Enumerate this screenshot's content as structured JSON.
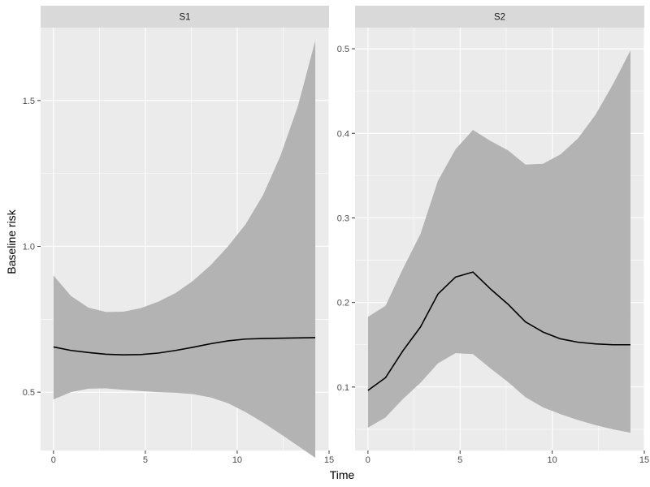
{
  "chart_data": {
    "type": "line",
    "xlabel": "Time",
    "ylabel": "Baseline risk",
    "colors": {
      "panel_bg": "#ebebeb",
      "strip_bg": "#d9d9d9",
      "grid": "#ffffff",
      "ribbon": "#b3b3b3",
      "line": "#000000"
    },
    "panels": [
      {
        "strip": "S1",
        "xlim": [
          -0.7,
          15
        ],
        "ylim": [
          0.3,
          1.75
        ],
        "xticks": [
          0,
          5,
          10,
          15
        ],
        "xtick_labels": [
          "0",
          "5",
          "10",
          "15"
        ],
        "yticks": [
          0.5,
          1.0,
          1.5
        ],
        "ytick_labels": [
          "0.5",
          "1.0",
          "1.5"
        ],
        "x": [
          0,
          0.95,
          1.9,
          2.85,
          3.8,
          4.75,
          5.7,
          6.65,
          7.6,
          8.55,
          9.5,
          10.45,
          11.4,
          12.35,
          13.3,
          14.25
        ],
        "y": [
          0.655,
          0.643,
          0.636,
          0.63,
          0.628,
          0.629,
          0.634,
          0.643,
          0.654,
          0.666,
          0.676,
          0.682,
          0.684,
          0.685,
          0.686,
          0.687
        ],
        "lower": [
          0.475,
          0.5,
          0.512,
          0.513,
          0.508,
          0.504,
          0.5,
          0.498,
          0.493,
          0.482,
          0.462,
          0.432,
          0.396,
          0.357,
          0.316,
          0.275
        ],
        "upper": [
          0.9,
          0.83,
          0.79,
          0.775,
          0.776,
          0.788,
          0.81,
          0.84,
          0.882,
          0.935,
          1.0,
          1.075,
          1.175,
          1.31,
          1.48,
          1.705
        ]
      },
      {
        "strip": "S2",
        "xlim": [
          -0.7,
          15
        ],
        "ylim": [
          0.025,
          0.525
        ],
        "xticks": [
          0,
          5,
          10,
          15
        ],
        "xtick_labels": [
          "0",
          "5",
          "10",
          "15"
        ],
        "yticks": [
          0.1,
          0.2,
          0.3,
          0.4,
          0.5
        ],
        "ytick_labels": [
          "0.1",
          "0.2",
          "0.3",
          "0.4",
          "0.5"
        ],
        "x": [
          0,
          0.95,
          1.9,
          2.85,
          3.8,
          4.75,
          5.7,
          6.65,
          7.6,
          8.55,
          9.5,
          10.45,
          11.4,
          12.35,
          13.3,
          14.25
        ],
        "y": [
          0.096,
          0.111,
          0.143,
          0.171,
          0.21,
          0.23,
          0.236,
          0.216,
          0.198,
          0.177,
          0.165,
          0.157,
          0.153,
          0.151,
          0.15,
          0.15
        ],
        "lower": [
          0.052,
          0.064,
          0.086,
          0.105,
          0.128,
          0.14,
          0.139,
          0.122,
          0.106,
          0.088,
          0.076,
          0.068,
          0.061,
          0.055,
          0.05,
          0.046
        ],
        "upper": [
          0.183,
          0.196,
          0.24,
          0.281,
          0.344,
          0.381,
          0.404,
          0.391,
          0.38,
          0.363,
          0.364,
          0.375,
          0.394,
          0.422,
          0.458,
          0.498
        ]
      }
    ]
  }
}
